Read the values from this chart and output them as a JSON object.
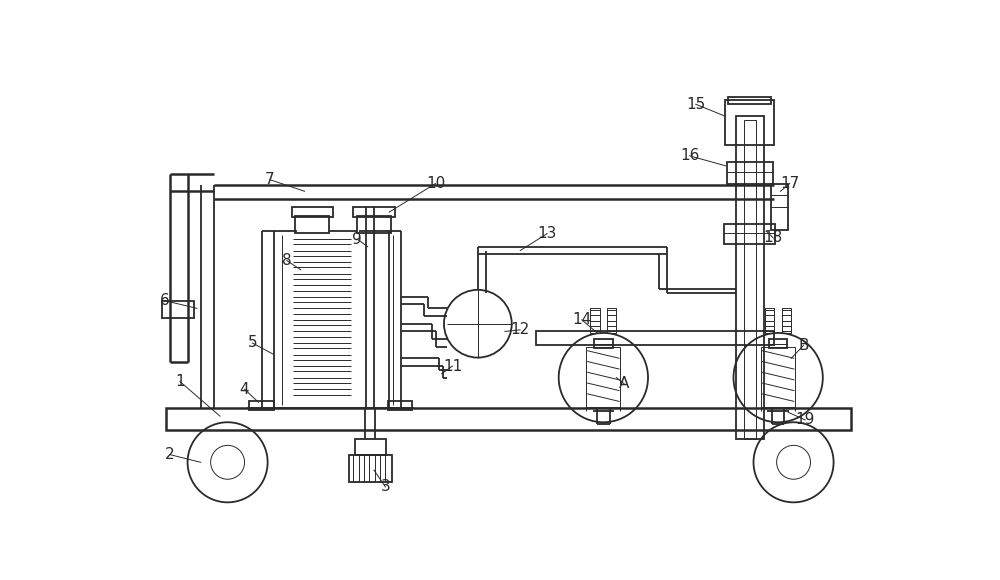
{
  "bg_color": "#ffffff",
  "line_color": "#2a2a2a",
  "lw": 1.3,
  "lw_thin": 0.7,
  "lw_thick": 1.8,
  "fig_width": 10.0,
  "fig_height": 5.8,
  "dpi": 100
}
